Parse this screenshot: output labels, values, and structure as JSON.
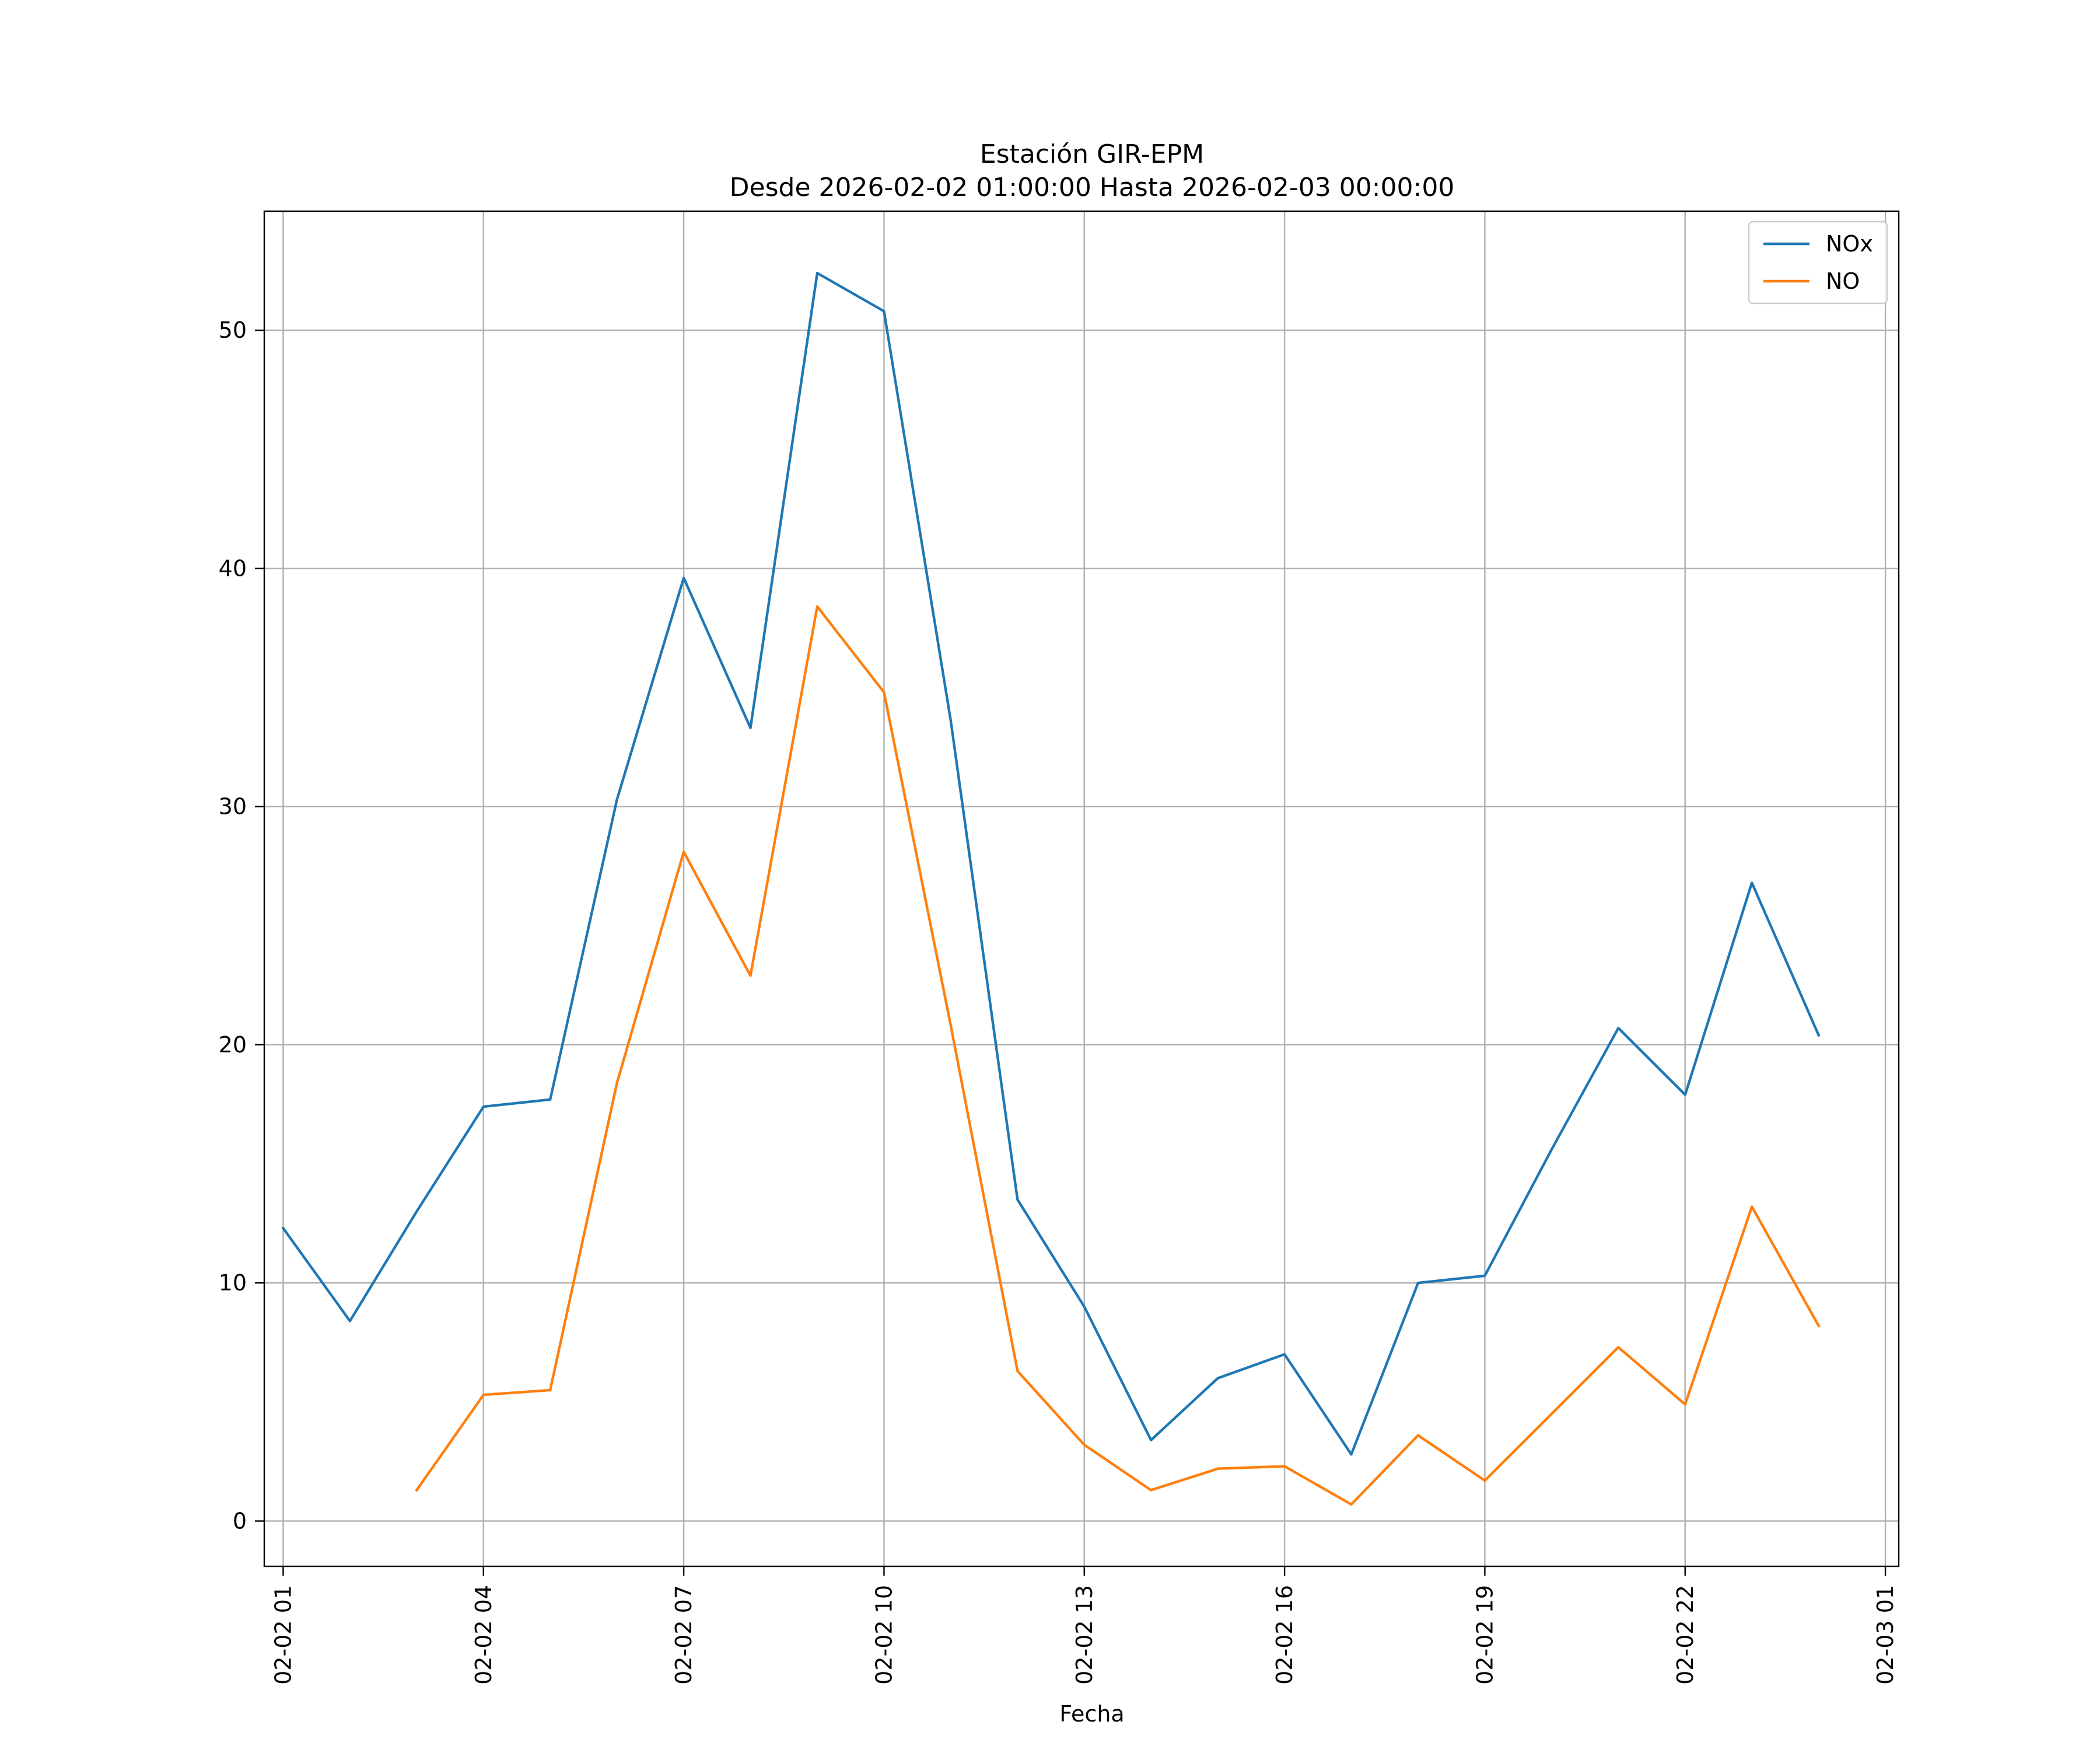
{
  "chart_data": {
    "type": "line",
    "title": "Estación GIR-EPM",
    "subtitle": "Desde 2026-02-02 01:00:00 Hasta 2026-02-03 00:00:00",
    "xlabel": "Fecha",
    "ylabel": "",
    "x": [
      "2026-02-02 01:00",
      "2026-02-02 02:00",
      "2026-02-02 03:00",
      "2026-02-02 04:00",
      "2026-02-02 05:00",
      "2026-02-02 06:00",
      "2026-02-02 07:00",
      "2026-02-02 08:00",
      "2026-02-02 09:00",
      "2026-02-02 10:00",
      "2026-02-02 11:00",
      "2026-02-02 12:00",
      "2026-02-02 13:00",
      "2026-02-02 14:00",
      "2026-02-02 15:00",
      "2026-02-02 16:00",
      "2026-02-02 17:00",
      "2026-02-02 18:00",
      "2026-02-02 19:00",
      "2026-02-02 20:00",
      "2026-02-02 21:00",
      "2026-02-02 22:00",
      "2026-02-02 23:00",
      "2026-02-03 00:00"
    ],
    "xlim": [
      "2026-02-02 00:43",
      "2026-02-03 01:12"
    ],
    "x_ticks": [
      "2026-02-02 01:00",
      "2026-02-02 04:00",
      "2026-02-02 07:00",
      "2026-02-02 10:00",
      "2026-02-02 13:00",
      "2026-02-02 16:00",
      "2026-02-02 19:00",
      "2026-02-02 22:00",
      "2026-02-03 01:00"
    ],
    "x_tick_labels": [
      "02-02 01",
      "02-02 04",
      "02-02 07",
      "02-02 10",
      "02-02 13",
      "02-02 16",
      "02-02 19",
      "02-02 22",
      "02-03 01"
    ],
    "ylim": [
      -1.9,
      55
    ],
    "y_ticks": [
      0,
      10,
      20,
      30,
      40,
      50
    ],
    "y_tick_labels": [
      "0",
      "10",
      "20",
      "30",
      "40",
      "50"
    ],
    "grid": true,
    "legend_position": "top-right",
    "series": [
      {
        "name": "NOx",
        "color": "#1f77b4",
        "values": [
          12.3,
          8.4,
          13.0,
          17.4,
          17.7,
          30.3,
          39.6,
          33.3,
          52.4,
          50.8,
          33.6,
          13.5,
          9.0,
          3.4,
          6.0,
          7.0,
          2.8,
          10.0,
          10.3,
          15.6,
          20.7,
          17.9,
          26.8,
          20.4
        ]
      },
      {
        "name": "NO",
        "color": "#ff7f0e",
        "values": [
          null,
          null,
          1.3,
          5.3,
          5.5,
          18.4,
          28.1,
          22.9,
          38.4,
          34.8,
          20.8,
          6.3,
          3.2,
          1.3,
          2.2,
          2.3,
          0.7,
          3.6,
          1.7,
          4.5,
          7.3,
          4.9,
          13.2,
          8.2
        ]
      }
    ]
  }
}
